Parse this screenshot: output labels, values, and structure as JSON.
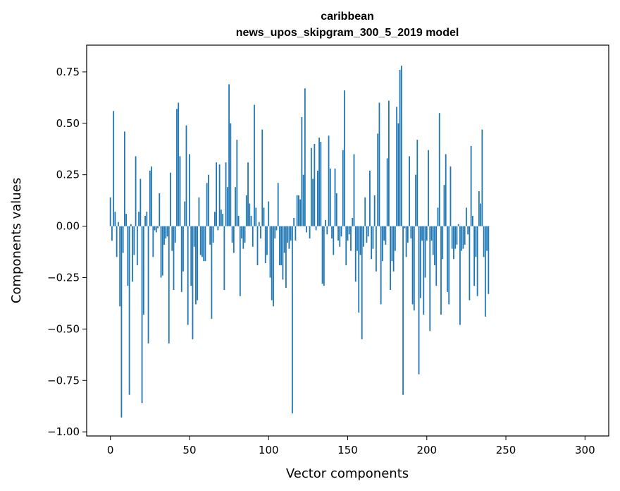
{
  "chart_data": {
    "type": "bar",
    "title": "caribbean",
    "subtitle": "news_upos_skipgram_300_5_2019 model",
    "xlabel": "Vector components",
    "ylabel": "Components values",
    "xlim": [
      -15,
      315
    ],
    "ylim": [
      -1.02,
      0.88
    ],
    "xticks": [
      0,
      50,
      100,
      150,
      200,
      250,
      300
    ],
    "xtick_labels": [
      "0",
      "50",
      "100",
      "150",
      "200",
      "250",
      "300"
    ],
    "yticks": [
      0.75,
      0.5,
      0.25,
      0.0,
      -0.25,
      -0.5,
      -0.75,
      -1.0
    ],
    "ytick_labels": [
      "0.75",
      "0.50",
      "0.25",
      "0.00",
      "−0.25",
      "−0.50",
      "−0.75",
      "−1.00"
    ],
    "color": "#1f77b4",
    "values": [
      0.14,
      -0.07,
      0.56,
      0.07,
      -0.15,
      0.02,
      -0.39,
      -0.93,
      -0.13,
      0.46,
      0.06,
      -0.29,
      -0.82,
      0.01,
      -0.27,
      -0.14,
      0.34,
      -0.19,
      0.07,
      0.23,
      -0.86,
      -0.43,
      0.05,
      0.07,
      -0.57,
      0.27,
      0.29,
      -0.15,
      -0.02,
      -0.03,
      -0.01,
      0.16,
      -0.25,
      -0.24,
      -0.09,
      -0.06,
      -0.05,
      -0.57,
      0.26,
      -0.12,
      -0.31,
      -0.08,
      0.57,
      0.6,
      0.34,
      -0.32,
      -0.22,
      0.12,
      0.49,
      -0.48,
      0.35,
      -0.29,
      -0.55,
      -0.1,
      -0.38,
      -0.36,
      0.14,
      -0.14,
      -0.15,
      -0.17,
      -0.17,
      0.21,
      0.25,
      -0.09,
      -0.45,
      -0.08,
      0.07,
      0.31,
      -0.02,
      0.3,
      0.08,
      0.06,
      -0.31,
      0.31,
      0.19,
      0.69,
      0.5,
      -0.08,
      -0.13,
      0.19,
      0.42,
      0.05,
      -0.34,
      -0.06,
      -0.11,
      -0.08,
      0.15,
      0.31,
      0.11,
      0.05,
      -0.1,
      0.59,
      0.09,
      -0.19,
      0.02,
      -0.06,
      0.47,
      0.09,
      -0.18,
      -0.14,
      0.12,
      -0.25,
      -0.36,
      -0.39,
      -0.06,
      -0.02,
      0.21,
      -0.19,
      -0.19,
      -0.26,
      -0.13,
      -0.3,
      -0.08,
      -0.11,
      -0.07,
      -0.91,
      0.04,
      -0.07,
      0.15,
      0.15,
      0.13,
      0.53,
      0.25,
      0.67,
      -0.03,
      0.0,
      -0.06,
      0.38,
      0.23,
      0.4,
      -0.02,
      0.27,
      0.43,
      0.41,
      -0.28,
      -0.29,
      0.03,
      -0.04,
      0.44,
      0.28,
      -0.06,
      -0.14,
      0.28,
      0.16,
      -0.07,
      -0.1,
      -0.05,
      0.37,
      0.66,
      -0.19,
      -0.07,
      -0.04,
      -0.12,
      0.04,
      0.35,
      -0.27,
      -0.12,
      -0.42,
      -0.14,
      -0.55,
      -0.1,
      0.14,
      -0.08,
      -0.05,
      0.27,
      -0.16,
      -0.11,
      0.15,
      -0.22,
      0.45,
      0.6,
      -0.38,
      -0.17,
      -0.07,
      -0.09,
      0.33,
      0.61,
      -0.31,
      -0.17,
      -0.22,
      -0.12,
      0.58,
      0.5,
      0.76,
      0.78,
      -0.82,
      -0.01,
      -0.15,
      -0.08,
      0.34,
      -0.06,
      -0.38,
      -0.41,
      0.25,
      0.42,
      -0.72,
      -0.35,
      -0.07,
      -0.43,
      -0.25,
      -0.07,
      0.37,
      -0.51,
      -0.07,
      -0.14,
      -0.19,
      -0.29,
      0.09,
      0.55,
      -0.43,
      -0.16,
      0.2,
      0.35,
      -0.32,
      -0.38,
      0.29,
      -0.11,
      -0.16,
      -0.11,
      -0.09,
      0.01,
      -0.48,
      -0.12,
      -0.11,
      -0.09,
      0.09,
      -0.04,
      -0.36,
      0.39,
      0.05,
      -0.29,
      -0.15,
      -0.34,
      0.17,
      0.11,
      0.47,
      -0.15,
      -0.44,
      -0.12,
      -0.33
    ]
  }
}
